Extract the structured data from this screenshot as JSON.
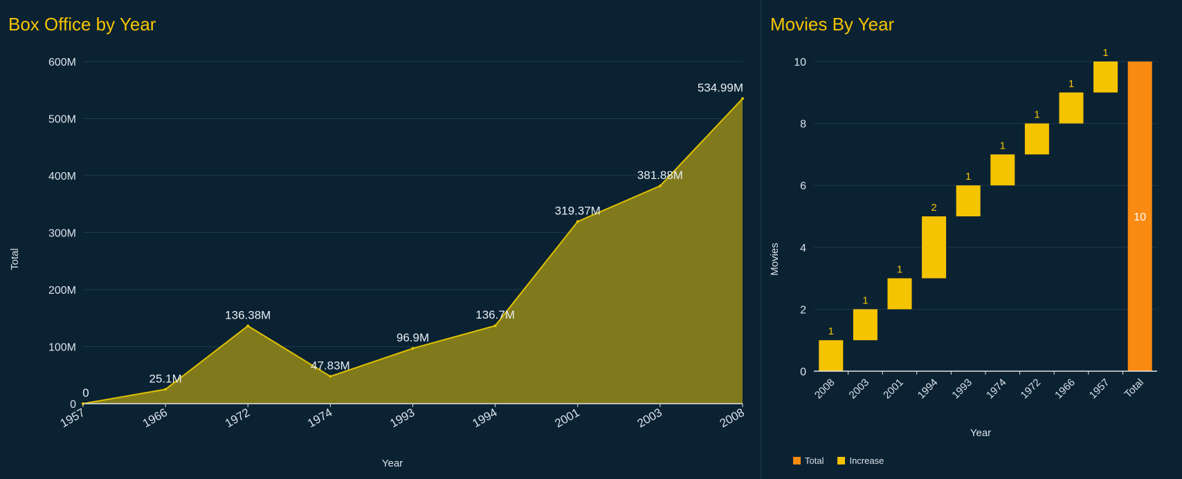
{
  "chart_data": [
    {
      "type": "area",
      "title": "Box Office by Year",
      "xlabel": "Year",
      "ylabel": "Total",
      "x": [
        "1957",
        "1966",
        "1972",
        "1974",
        "1993",
        "1994",
        "2001",
        "2003",
        "2008"
      ],
      "values": [
        0,
        25.1,
        136.38,
        47.83,
        96.9,
        136.7,
        319.37,
        381.88,
        534.99
      ],
      "value_labels": [
        "0",
        "25.1M",
        "136.38M",
        "47.83M",
        "96.9M",
        "136.7M",
        "319.37M",
        "381.88M",
        "534.99M"
      ],
      "yticks": [
        0,
        100,
        200,
        300,
        400,
        500,
        600
      ],
      "ytick_labels": [
        "0",
        "100M",
        "200M",
        "300M",
        "400M",
        "500M",
        "600M"
      ],
      "ylim": [
        0,
        600
      ],
      "grid": true,
      "colors": {
        "line": "#e0c200",
        "fill": "#817a1c"
      }
    },
    {
      "type": "bar",
      "subtype": "waterfall",
      "title": "Movies By Year",
      "xlabel": "Year",
      "ylabel": "Movies",
      "categories": [
        "2008",
        "2003",
        "2001",
        "1994",
        "1993",
        "1974",
        "1972",
        "1966",
        "1957",
        "Total"
      ],
      "values": [
        1,
        1,
        1,
        2,
        1,
        1,
        1,
        1,
        1,
        10
      ],
      "kinds": [
        "increase",
        "increase",
        "increase",
        "increase",
        "increase",
        "increase",
        "increase",
        "increase",
        "increase",
        "total"
      ],
      "yticks": [
        0,
        2,
        4,
        6,
        8,
        10
      ],
      "ylim": [
        0,
        10
      ],
      "grid": true,
      "legend": {
        "position": "bottom-left",
        "entries": [
          {
            "name": "Total",
            "color": "#f98a12"
          },
          {
            "name": "Increase",
            "color": "#f5c400"
          }
        ]
      }
    }
  ]
}
